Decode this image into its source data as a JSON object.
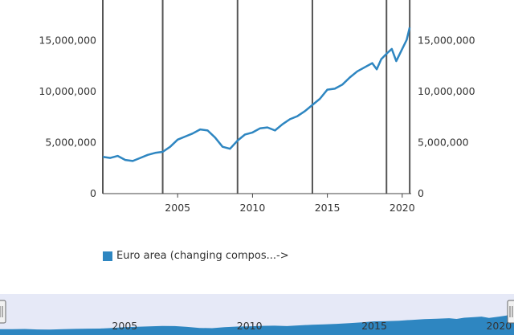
{
  "colors": {
    "series": "#2e86c1",
    "navigator_bg": "#e6e9f7",
    "navigator_fill": "#2e86c1",
    "event_line": "#555555"
  },
  "chart_data": {
    "type": "line",
    "title": "",
    "xlabel": "",
    "ylabel": "",
    "xlim": [
      2000,
      2020.6
    ],
    "ylim": [
      0,
      19000000
    ],
    "y_ticks": [
      0,
      5000000,
      10000000,
      15000000
    ],
    "y_tick_labels": [
      "0",
      "5,000,000",
      "10,000,000",
      "15,000,000"
    ],
    "x_ticks": [
      2005,
      2010,
      2015,
      2020
    ],
    "x_tick_labels": [
      "2005",
      "2010",
      "2015",
      "2020"
    ],
    "event_lines_x": [
      2000,
      2004,
      2009,
      2014,
      2018.95,
      2020.5
    ],
    "series": [
      {
        "name": "Euro area (changing compos...->",
        "x": [
          2000,
          2000.5,
          2001,
          2001.5,
          2002,
          2002.5,
          2003,
          2003.5,
          2004,
          2004.5,
          2005,
          2005.5,
          2006,
          2006.5,
          2007,
          2007.5,
          2008,
          2008.5,
          2009,
          2009.5,
          2010,
          2010.5,
          2011,
          2011.5,
          2012,
          2012.5,
          2013,
          2013.5,
          2014,
          2014.5,
          2015,
          2015.5,
          2016,
          2016.5,
          2017,
          2017.5,
          2018,
          2018.3,
          2018.6,
          2019,
          2019.3,
          2019.6,
          2020,
          2020.3,
          2020.5
        ],
        "values": [
          3600000,
          3500000,
          3700000,
          3300000,
          3200000,
          3500000,
          3800000,
          4000000,
          4100000,
          4600000,
          5300000,
          5600000,
          5900000,
          6300000,
          6200000,
          5500000,
          4600000,
          4400000,
          5200000,
          5800000,
          6000000,
          6400000,
          6500000,
          6200000,
          6800000,
          7300000,
          7600000,
          8100000,
          8700000,
          9300000,
          10200000,
          10300000,
          10700000,
          11400000,
          12000000,
          12400000,
          12800000,
          12200000,
          13200000,
          13800000,
          14200000,
          13000000,
          14200000,
          15100000,
          16300000
        ]
      }
    ],
    "legend_position": "bottom-left",
    "grid": false
  },
  "navigator": {
    "x_tick_labels": [
      "2005",
      "2010",
      "2015",
      "2020"
    ],
    "x_ticks": [
      2005,
      2010,
      2015,
      2020
    ],
    "xlim": [
      2000,
      2020.6
    ]
  }
}
